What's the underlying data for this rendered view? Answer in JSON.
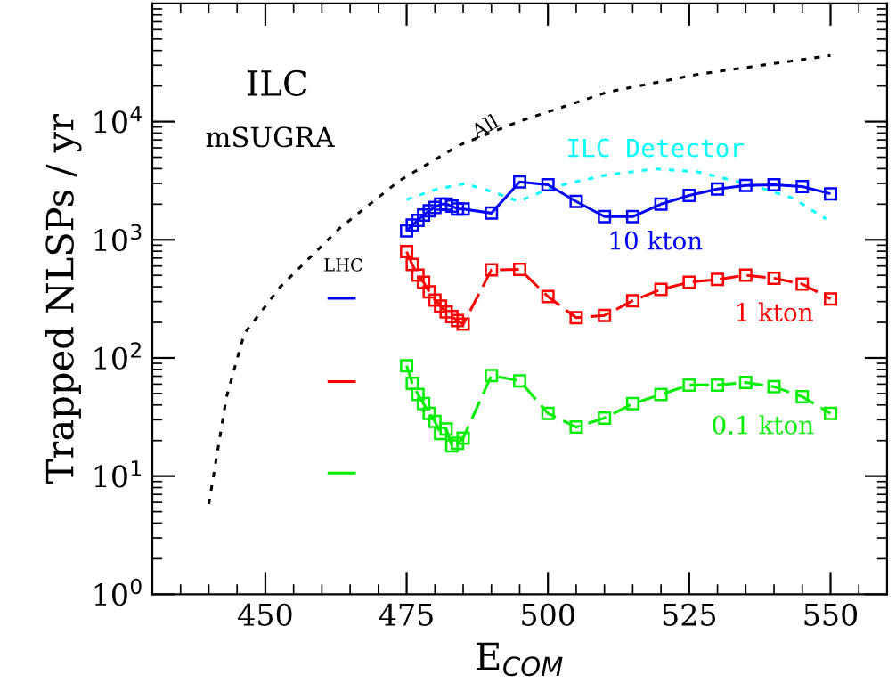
{
  "chart_data": {
    "type": "line",
    "xlabel": "E$_{COM}$",
    "ylabel": "Trapped NLSPs / yr",
    "log": "y",
    "grid": false,
    "legend": false,
    "xlim": [
      430,
      560
    ],
    "xticks": [
      450,
      475,
      500,
      525,
      550
    ],
    "ylim": [
      1,
      100000
    ],
    "yticks": [
      {
        "value": 1,
        "label": "10$^{0}$"
      },
      {
        "value": 10,
        "label": "10$^{1}$"
      },
      {
        "value": 100,
        "label": "10$^{2}$"
      },
      {
        "value": 1000,
        "label": "10$^{3}$"
      },
      {
        "value": 10000,
        "label": "10$^{4}$"
      }
    ],
    "series": [
      {
        "name": "All",
        "color": "#000000",
        "line_style": "dotted",
        "marker": "none",
        "x": [
          440,
          443.1,
          445.2,
          446.3,
          452.6,
          463.2,
          473.7,
          484.3,
          494.8,
          510.6,
          526.5,
          550
        ],
        "values": [
          5.8,
          46,
          106,
          161,
          398,
          1260,
          3160,
          6310,
          10000,
          17800,
          25100,
          36300
        ]
      },
      {
        "name": "ILC Detector",
        "color": "#00ffff",
        "line_style": "dotted",
        "marker": "none",
        "x": [
          475,
          480.1,
          485.3,
          490.6,
          494.8,
          501.1,
          510.6,
          519,
          526.5,
          537,
          543.4,
          549.2
        ],
        "values": [
          2190,
          2660,
          2990,
          2510,
          2110,
          2820,
          3550,
          3980,
          3760,
          2820,
          2240,
          1500
        ]
      },
      {
        "name": "10 kton",
        "color": "#0000ff",
        "line_style": "solid",
        "marker": "square",
        "x": [
          475,
          476,
          477,
          478,
          479,
          480,
          481,
          482,
          483,
          484,
          485,
          490,
          495,
          500,
          505,
          510,
          515,
          520,
          525,
          530,
          535,
          540,
          545,
          550
        ],
        "values": [
          1190,
          1330,
          1460,
          1620,
          1760,
          1880,
          2000,
          2000,
          1930,
          1820,
          1820,
          1680,
          3090,
          2920,
          2110,
          1570,
          1570,
          2000,
          2370,
          2690,
          2880,
          2920,
          2820,
          2450
        ]
      },
      {
        "name": "1 kton",
        "color": "#ff0000",
        "line_style": "dashed",
        "marker": "square",
        "x": [
          475,
          476,
          477,
          478,
          479,
          480,
          481,
          482,
          483,
          484,
          485,
          490,
          495,
          500,
          505,
          510,
          515,
          520,
          525,
          530,
          535,
          540,
          545,
          550
        ],
        "values": [
          794,
          617,
          501,
          437,
          363,
          309,
          275,
          245,
          224,
          207,
          193,
          556,
          562,
          331,
          219,
          229,
          305,
          380,
          437,
          462,
          501,
          473,
          422,
          316
        ]
      },
      {
        "name": "0.1 kton",
        "color": "#00ee00",
        "line_style": "dashed",
        "marker": "square",
        "x": [
          475,
          476,
          477,
          478,
          479,
          480,
          481,
          482,
          483,
          484,
          485,
          490,
          495,
          500,
          505,
          510,
          515,
          520,
          525,
          530,
          535,
          540,
          545,
          550
        ],
        "values": [
          86,
          61,
          49,
          41,
          34,
          29,
          23,
          25,
          18,
          19,
          21,
          71,
          64,
          34,
          26,
          31,
          41,
          49,
          59,
          59,
          62,
          57,
          47,
          34
        ]
      },
      {
        "color": "#0000ff",
        "line_style": "solid",
        "marker": "none",
        "x": [
          461,
          466
        ],
        "values": [
          320,
          320
        ]
      },
      {
        "color": "#ff0000",
        "line_style": "solid",
        "marker": "none",
        "x": [
          461,
          466
        ],
        "values": [
          63,
          63
        ]
      },
      {
        "color": "#00ee00",
        "line_style": "solid",
        "marker": "none",
        "x": [
          461,
          466
        ],
        "values": [
          10.6,
          10.6
        ]
      }
    ],
    "annotations": [
      "ILC",
      "mSUGRA",
      "LHC"
    ]
  }
}
